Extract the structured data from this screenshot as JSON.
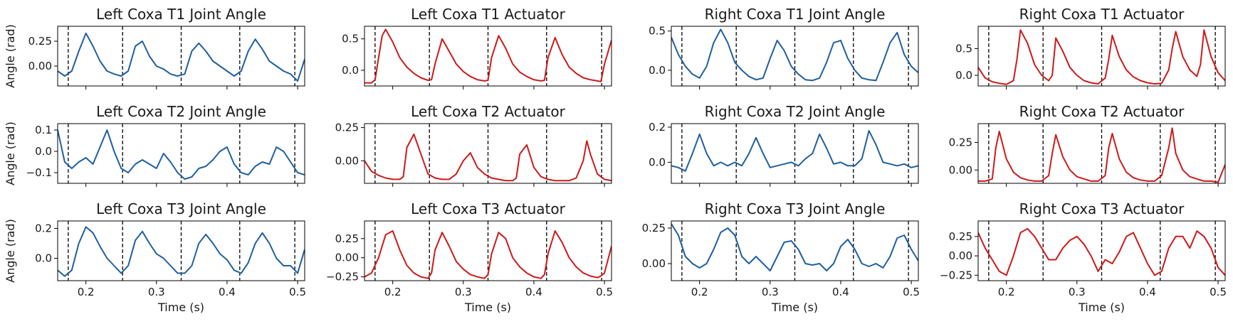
{
  "figure": {
    "ylabel": "Angle (rad)",
    "xlabel": "Time (s)",
    "xlim": [
      0.16,
      0.51
    ],
    "xticks": [
      0.2,
      0.3,
      0.4,
      0.5
    ],
    "xtick_labels": [
      "0.2",
      "0.3",
      "0.4",
      "0.5"
    ],
    "stance_lines": [
      0.175,
      0.252,
      0.335,
      0.418,
      0.496
    ],
    "colors": {
      "joint_angle": "#1f5fa0",
      "actuator": "#cc1a1a",
      "axis": "#000000"
    }
  },
  "chart_data": [
    {
      "type": "line",
      "title": "Left Coxa T1 Joint Angle",
      "row": 0,
      "col": 0,
      "series_kind": "joint_angle",
      "ylim": [
        -0.2,
        0.4
      ],
      "yticks": [
        -0.0,
        0.25
      ],
      "ytick_labels": [
        "0.00",
        "0.25"
      ],
      "x": [
        0.16,
        0.17,
        0.18,
        0.19,
        0.2,
        0.21,
        0.22,
        0.23,
        0.24,
        0.25,
        0.26,
        0.27,
        0.28,
        0.29,
        0.3,
        0.31,
        0.32,
        0.33,
        0.34,
        0.35,
        0.36,
        0.37,
        0.38,
        0.39,
        0.4,
        0.41,
        0.42,
        0.43,
        0.44,
        0.45,
        0.46,
        0.47,
        0.48,
        0.49,
        0.5,
        0.51
      ],
      "y": [
        -0.05,
        -0.1,
        -0.05,
        0.15,
        0.33,
        0.2,
        0.05,
        -0.05,
        -0.08,
        -0.1,
        -0.05,
        0.2,
        0.25,
        0.1,
        0.0,
        -0.03,
        -0.08,
        -0.1,
        -0.08,
        0.15,
        0.23,
        0.15,
        0.05,
        0.0,
        -0.05,
        -0.1,
        -0.05,
        0.15,
        0.27,
        0.17,
        0.05,
        0.0,
        -0.05,
        -0.08,
        -0.15,
        0.07
      ]
    },
    {
      "type": "line",
      "title": "Left Coxa T1 Actuator",
      "row": 0,
      "col": 1,
      "series_kind": "actuator",
      "ylim": [
        -0.25,
        0.7
      ],
      "yticks": [
        -0.0,
        0.5
      ],
      "ytick_labels": [
        "0.0",
        "0.5"
      ],
      "x": [
        0.16,
        0.17,
        0.175,
        0.18,
        0.185,
        0.19,
        0.2,
        0.21,
        0.22,
        0.23,
        0.24,
        0.25,
        0.255,
        0.26,
        0.27,
        0.28,
        0.29,
        0.3,
        0.31,
        0.32,
        0.33,
        0.335,
        0.34,
        0.35,
        0.36,
        0.37,
        0.38,
        0.39,
        0.4,
        0.41,
        0.415,
        0.42,
        0.43,
        0.44,
        0.45,
        0.46,
        0.47,
        0.48,
        0.49,
        0.495,
        0.5,
        0.51
      ],
      "y": [
        -0.2,
        -0.2,
        -0.15,
        0.2,
        0.55,
        0.65,
        0.45,
        0.2,
        0.05,
        -0.05,
        -0.12,
        -0.16,
        -0.15,
        0.1,
        0.5,
        0.3,
        0.1,
        -0.02,
        -0.1,
        -0.15,
        -0.17,
        -0.16,
        0.2,
        0.55,
        0.35,
        0.1,
        -0.03,
        -0.1,
        -0.15,
        -0.17,
        -0.16,
        0.2,
        0.52,
        0.25,
        0.05,
        -0.05,
        -0.12,
        -0.15,
        -0.17,
        -0.18,
        0.1,
        0.48
      ]
    },
    {
      "type": "line",
      "title": "Right Coxa T1 Joint Angle",
      "row": 0,
      "col": 2,
      "series_kind": "joint_angle",
      "ylim": [
        -0.2,
        0.56
      ],
      "yticks": [
        -0.0,
        0.5
      ],
      "ytick_labels": [
        "0.0",
        "0.5"
      ],
      "x": [
        0.16,
        0.17,
        0.18,
        0.19,
        0.2,
        0.21,
        0.22,
        0.23,
        0.24,
        0.25,
        0.26,
        0.27,
        0.28,
        0.29,
        0.3,
        0.31,
        0.32,
        0.33,
        0.34,
        0.35,
        0.36,
        0.37,
        0.38,
        0.39,
        0.4,
        0.41,
        0.42,
        0.43,
        0.44,
        0.45,
        0.46,
        0.47,
        0.48,
        0.49,
        0.5,
        0.51
      ],
      "y": [
        0.42,
        0.2,
        0.05,
        -0.05,
        -0.1,
        0.05,
        0.35,
        0.52,
        0.35,
        0.1,
        0.0,
        -0.08,
        -0.12,
        -0.1,
        0.15,
        0.38,
        0.25,
        0.05,
        -0.05,
        -0.12,
        -0.13,
        -0.1,
        0.1,
        0.35,
        0.38,
        0.15,
        0.0,
        -0.1,
        -0.12,
        -0.13,
        0.1,
        0.35,
        0.48,
        0.2,
        0.05,
        -0.03
      ]
    },
    {
      "type": "line",
      "title": "Right Coxa T1 Actuator",
      "row": 0,
      "col": 3,
      "series_kind": "actuator",
      "ylim": [
        -0.2,
        0.92
      ],
      "yticks": [
        -0.0,
        0.5
      ],
      "ytick_labels": [
        "0.0",
        "0.5"
      ],
      "x": [
        0.16,
        0.17,
        0.18,
        0.19,
        0.2,
        0.21,
        0.215,
        0.22,
        0.23,
        0.24,
        0.25,
        0.26,
        0.265,
        0.27,
        0.28,
        0.29,
        0.3,
        0.31,
        0.32,
        0.33,
        0.34,
        0.345,
        0.35,
        0.36,
        0.37,
        0.38,
        0.39,
        0.4,
        0.41,
        0.42,
        0.43,
        0.435,
        0.44,
        0.45,
        0.46,
        0.47,
        0.475,
        0.48,
        0.49,
        0.5,
        0.51
      ],
      "y": [
        0.15,
        -0.05,
        -0.12,
        -0.15,
        -0.17,
        -0.1,
        0.3,
        0.85,
        0.6,
        0.2,
        0.0,
        -0.1,
        0.0,
        0.7,
        0.45,
        0.15,
        0.0,
        -0.1,
        -0.14,
        -0.16,
        -0.05,
        0.3,
        0.75,
        0.35,
        0.1,
        -0.03,
        -0.1,
        -0.14,
        -0.16,
        -0.15,
        0.1,
        0.5,
        0.82,
        0.35,
        0.1,
        -0.02,
        0.2,
        0.85,
        0.35,
        0.05,
        -0.1
      ]
    },
    {
      "type": "line",
      "title": "Left Coxa T2 Joint Angle",
      "row": 1,
      "col": 0,
      "series_kind": "joint_angle",
      "ylim": [
        -0.15,
        0.13
      ],
      "yticks": [
        -0.1,
        0.0,
        0.1
      ],
      "ytick_labels": [
        "−0.1",
        "0.0",
        "0.1"
      ],
      "x": [
        0.16,
        0.17,
        0.18,
        0.19,
        0.2,
        0.21,
        0.22,
        0.23,
        0.24,
        0.25,
        0.26,
        0.27,
        0.28,
        0.29,
        0.3,
        0.31,
        0.32,
        0.33,
        0.34,
        0.35,
        0.36,
        0.37,
        0.38,
        0.39,
        0.4,
        0.41,
        0.42,
        0.43,
        0.44,
        0.45,
        0.46,
        0.47,
        0.48,
        0.49,
        0.5,
        0.51
      ],
      "y": [
        0.1,
        -0.05,
        -0.08,
        -0.05,
        -0.03,
        -0.06,
        0.02,
        0.1,
        0.0,
        -0.08,
        -0.1,
        -0.06,
        -0.04,
        -0.06,
        -0.08,
        -0.01,
        -0.05,
        -0.1,
        -0.13,
        -0.12,
        -0.08,
        -0.07,
        -0.04,
        0.0,
        0.02,
        -0.06,
        -0.1,
        -0.11,
        -0.07,
        -0.05,
        -0.06,
        0.02,
        0.0,
        -0.05,
        -0.1,
        -0.11
      ]
    },
    {
      "type": "line",
      "title": "Left Coxa T2 Actuator",
      "row": 1,
      "col": 1,
      "series_kind": "actuator",
      "ylim": [
        -0.17,
        0.28
      ],
      "yticks": [
        -0.0,
        0.25
      ],
      "ytick_labels": [
        "0.00",
        "0.25"
      ],
      "x": [
        0.16,
        0.17,
        0.18,
        0.19,
        0.2,
        0.21,
        0.215,
        0.22,
        0.23,
        0.24,
        0.25,
        0.26,
        0.27,
        0.28,
        0.29,
        0.3,
        0.31,
        0.32,
        0.33,
        0.34,
        0.35,
        0.36,
        0.37,
        0.375,
        0.38,
        0.39,
        0.4,
        0.41,
        0.42,
        0.43,
        0.44,
        0.45,
        0.46,
        0.47,
        0.475,
        0.48,
        0.49,
        0.5,
        0.51
      ],
      "y": [
        0.0,
        -0.08,
        -0.11,
        -0.13,
        -0.14,
        -0.14,
        -0.12,
        0.1,
        0.2,
        0.05,
        -0.1,
        -0.13,
        -0.14,
        -0.14,
        -0.1,
        0.0,
        0.06,
        -0.05,
        -0.1,
        -0.13,
        -0.14,
        -0.15,
        -0.15,
        -0.13,
        0.05,
        0.12,
        -0.05,
        -0.12,
        -0.14,
        -0.15,
        -0.15,
        -0.15,
        -0.13,
        0.0,
        0.15,
        0.05,
        -0.1,
        -0.14,
        -0.15
      ]
    },
    {
      "type": "line",
      "title": "Right Coxa T2 Joint Angle",
      "row": 1,
      "col": 2,
      "series_kind": "joint_angle",
      "ylim": [
        -0.12,
        0.22
      ],
      "yticks": [
        -0.0,
        0.2
      ],
      "ytick_labels": [
        "0.0",
        "0.2"
      ],
      "x": [
        0.16,
        0.17,
        0.18,
        0.19,
        0.2,
        0.21,
        0.22,
        0.23,
        0.24,
        0.25,
        0.26,
        0.27,
        0.28,
        0.29,
        0.3,
        0.31,
        0.32,
        0.33,
        0.34,
        0.35,
        0.36,
        0.37,
        0.38,
        0.39,
        0.4,
        0.41,
        0.42,
        0.43,
        0.44,
        0.45,
        0.46,
        0.47,
        0.48,
        0.49,
        0.5,
        0.51
      ],
      "y": [
        -0.02,
        -0.03,
        -0.05,
        0.05,
        0.16,
        0.05,
        -0.02,
        0.0,
        -0.02,
        0.0,
        -0.02,
        0.05,
        0.14,
        0.05,
        -0.03,
        -0.02,
        -0.01,
        0.0,
        -0.02,
        0.02,
        0.05,
        0.16,
        0.08,
        -0.01,
        0.0,
        -0.02,
        -0.02,
        0.02,
        0.18,
        0.1,
        0.0,
        -0.01,
        -0.02,
        -0.01,
        -0.03,
        -0.02
      ]
    },
    {
      "type": "line",
      "title": "Right Coxa T2 Actuator",
      "row": 1,
      "col": 3,
      "series_kind": "actuator",
      "ylim": [
        -0.12,
        0.42
      ],
      "yticks": [
        -0.0,
        0.25
      ],
      "ytick_labels": [
        "0.00",
        "0.25"
      ],
      "x": [
        0.16,
        0.17,
        0.18,
        0.185,
        0.19,
        0.2,
        0.21,
        0.22,
        0.23,
        0.24,
        0.25,
        0.26,
        0.265,
        0.27,
        0.28,
        0.29,
        0.3,
        0.31,
        0.32,
        0.33,
        0.34,
        0.345,
        0.35,
        0.36,
        0.37,
        0.38,
        0.39,
        0.4,
        0.41,
        0.42,
        0.43,
        0.435,
        0.44,
        0.45,
        0.46,
        0.47,
        0.48,
        0.49,
        0.5,
        0.51
      ],
      "y": [
        -0.1,
        -0.1,
        -0.08,
        0.2,
        0.35,
        0.1,
        -0.02,
        -0.07,
        -0.09,
        -0.1,
        -0.1,
        -0.05,
        0.15,
        0.32,
        0.12,
        0.0,
        -0.06,
        -0.08,
        -0.1,
        -0.1,
        -0.05,
        0.2,
        0.33,
        0.1,
        -0.02,
        -0.07,
        -0.09,
        -0.1,
        -0.1,
        -0.05,
        0.2,
        0.38,
        0.15,
        0.0,
        -0.06,
        -0.08,
        -0.1,
        -0.1,
        -0.11,
        0.05
      ]
    },
    {
      "type": "line",
      "title": "Left Coxa T3 Joint Angle",
      "row": 2,
      "col": 0,
      "series_kind": "joint_angle",
      "ylim": [
        -0.15,
        0.25
      ],
      "yticks": [
        -0.0,
        0.2
      ],
      "ytick_labels": [
        "0.0",
        "0.2"
      ],
      "x": [
        0.16,
        0.17,
        0.18,
        0.19,
        0.2,
        0.21,
        0.22,
        0.23,
        0.24,
        0.25,
        0.26,
        0.27,
        0.28,
        0.29,
        0.3,
        0.31,
        0.32,
        0.33,
        0.34,
        0.35,
        0.36,
        0.37,
        0.38,
        0.39,
        0.4,
        0.41,
        0.42,
        0.43,
        0.44,
        0.45,
        0.46,
        0.47,
        0.48,
        0.49,
        0.5,
        0.51
      ],
      "y": [
        -0.08,
        -0.12,
        -0.08,
        0.1,
        0.21,
        0.17,
        0.08,
        0.0,
        -0.05,
        -0.1,
        -0.05,
        0.12,
        0.18,
        0.1,
        0.03,
        0.0,
        -0.05,
        -0.1,
        -0.1,
        -0.05,
        0.1,
        0.16,
        0.1,
        0.03,
        -0.01,
        -0.08,
        -0.1,
        -0.03,
        0.1,
        0.17,
        0.1,
        0.0,
        -0.05,
        -0.05,
        -0.1,
        0.06
      ]
    },
    {
      "type": "line",
      "title": "Left Coxa T3 Actuator",
      "row": 2,
      "col": 1,
      "series_kind": "actuator",
      "ylim": [
        -0.3,
        0.48
      ],
      "yticks": [
        -0.25,
        0.0,
        0.25
      ],
      "ytick_labels": [
        "−0.25",
        "0.00",
        "0.25"
      ],
      "x": [
        0.16,
        0.17,
        0.18,
        0.19,
        0.2,
        0.21,
        0.22,
        0.23,
        0.24,
        0.25,
        0.255,
        0.26,
        0.27,
        0.28,
        0.29,
        0.3,
        0.31,
        0.32,
        0.33,
        0.335,
        0.34,
        0.35,
        0.36,
        0.37,
        0.38,
        0.39,
        0.4,
        0.41,
        0.415,
        0.42,
        0.43,
        0.44,
        0.45,
        0.46,
        0.47,
        0.48,
        0.49,
        0.495,
        0.5,
        0.51
      ],
      "y": [
        -0.25,
        -0.2,
        0.0,
        0.3,
        0.35,
        0.1,
        -0.1,
        -0.2,
        -0.25,
        -0.27,
        -0.2,
        0.1,
        0.33,
        0.15,
        -0.05,
        -0.15,
        -0.22,
        -0.25,
        -0.27,
        -0.22,
        0.05,
        0.33,
        0.25,
        0.0,
        -0.12,
        -0.2,
        -0.25,
        -0.27,
        -0.22,
        0.05,
        0.35,
        0.2,
        0.0,
        -0.12,
        -0.2,
        -0.24,
        -0.26,
        -0.24,
        -0.2,
        0.15
      ]
    },
    {
      "type": "line",
      "title": "Right Coxa T3 Joint Angle",
      "row": 2,
      "col": 2,
      "series_kind": "joint_angle",
      "ylim": [
        -0.12,
        0.3
      ],
      "yticks": [
        -0.0,
        0.25
      ],
      "ytick_labels": [
        "0.00",
        "0.25"
      ],
      "x": [
        0.16,
        0.17,
        0.18,
        0.19,
        0.2,
        0.21,
        0.22,
        0.23,
        0.24,
        0.25,
        0.26,
        0.27,
        0.28,
        0.29,
        0.3,
        0.31,
        0.32,
        0.33,
        0.34,
        0.35,
        0.36,
        0.37,
        0.38,
        0.39,
        0.4,
        0.41,
        0.42,
        0.43,
        0.44,
        0.45,
        0.46,
        0.47,
        0.48,
        0.49,
        0.5,
        0.51
      ],
      "y": [
        0.28,
        0.2,
        0.05,
        0.0,
        -0.03,
        0.0,
        0.1,
        0.22,
        0.25,
        0.2,
        0.05,
        0.0,
        0.05,
        0.0,
        -0.05,
        0.05,
        0.15,
        0.16,
        0.1,
        0.0,
        -0.01,
        0.0,
        -0.05,
        0.0,
        0.12,
        0.17,
        0.1,
        0.0,
        -0.02,
        0.0,
        -0.03,
        0.05,
        0.18,
        0.2,
        0.1,
        0.02
      ]
    },
    {
      "type": "line",
      "title": "Right Coxa T3 Actuator",
      "row": 2,
      "col": 3,
      "series_kind": "actuator",
      "ylim": [
        -0.32,
        0.45
      ],
      "yticks": [
        -0.25,
        0.0,
        0.25
      ],
      "ytick_labels": [
        "−0.25",
        "0.00",
        "0.25"
      ],
      "x": [
        0.16,
        0.17,
        0.18,
        0.19,
        0.2,
        0.21,
        0.22,
        0.23,
        0.24,
        0.25,
        0.26,
        0.27,
        0.28,
        0.29,
        0.3,
        0.31,
        0.32,
        0.33,
        0.34,
        0.35,
        0.36,
        0.37,
        0.38,
        0.39,
        0.4,
        0.41,
        0.42,
        0.43,
        0.44,
        0.45,
        0.46,
        0.47,
        0.48,
        0.49,
        0.5,
        0.51
      ],
      "y": [
        0.3,
        0.1,
        -0.05,
        -0.2,
        -0.25,
        0.0,
        0.3,
        0.35,
        0.25,
        0.1,
        -0.05,
        -0.05,
        0.1,
        0.2,
        0.25,
        0.15,
        0.0,
        -0.2,
        -0.05,
        -0.1,
        0.05,
        0.25,
        0.3,
        0.1,
        -0.1,
        -0.25,
        -0.2,
        0.1,
        0.25,
        0.25,
        0.1,
        0.32,
        0.25,
        0.1,
        -0.15,
        -0.25
      ]
    }
  ]
}
